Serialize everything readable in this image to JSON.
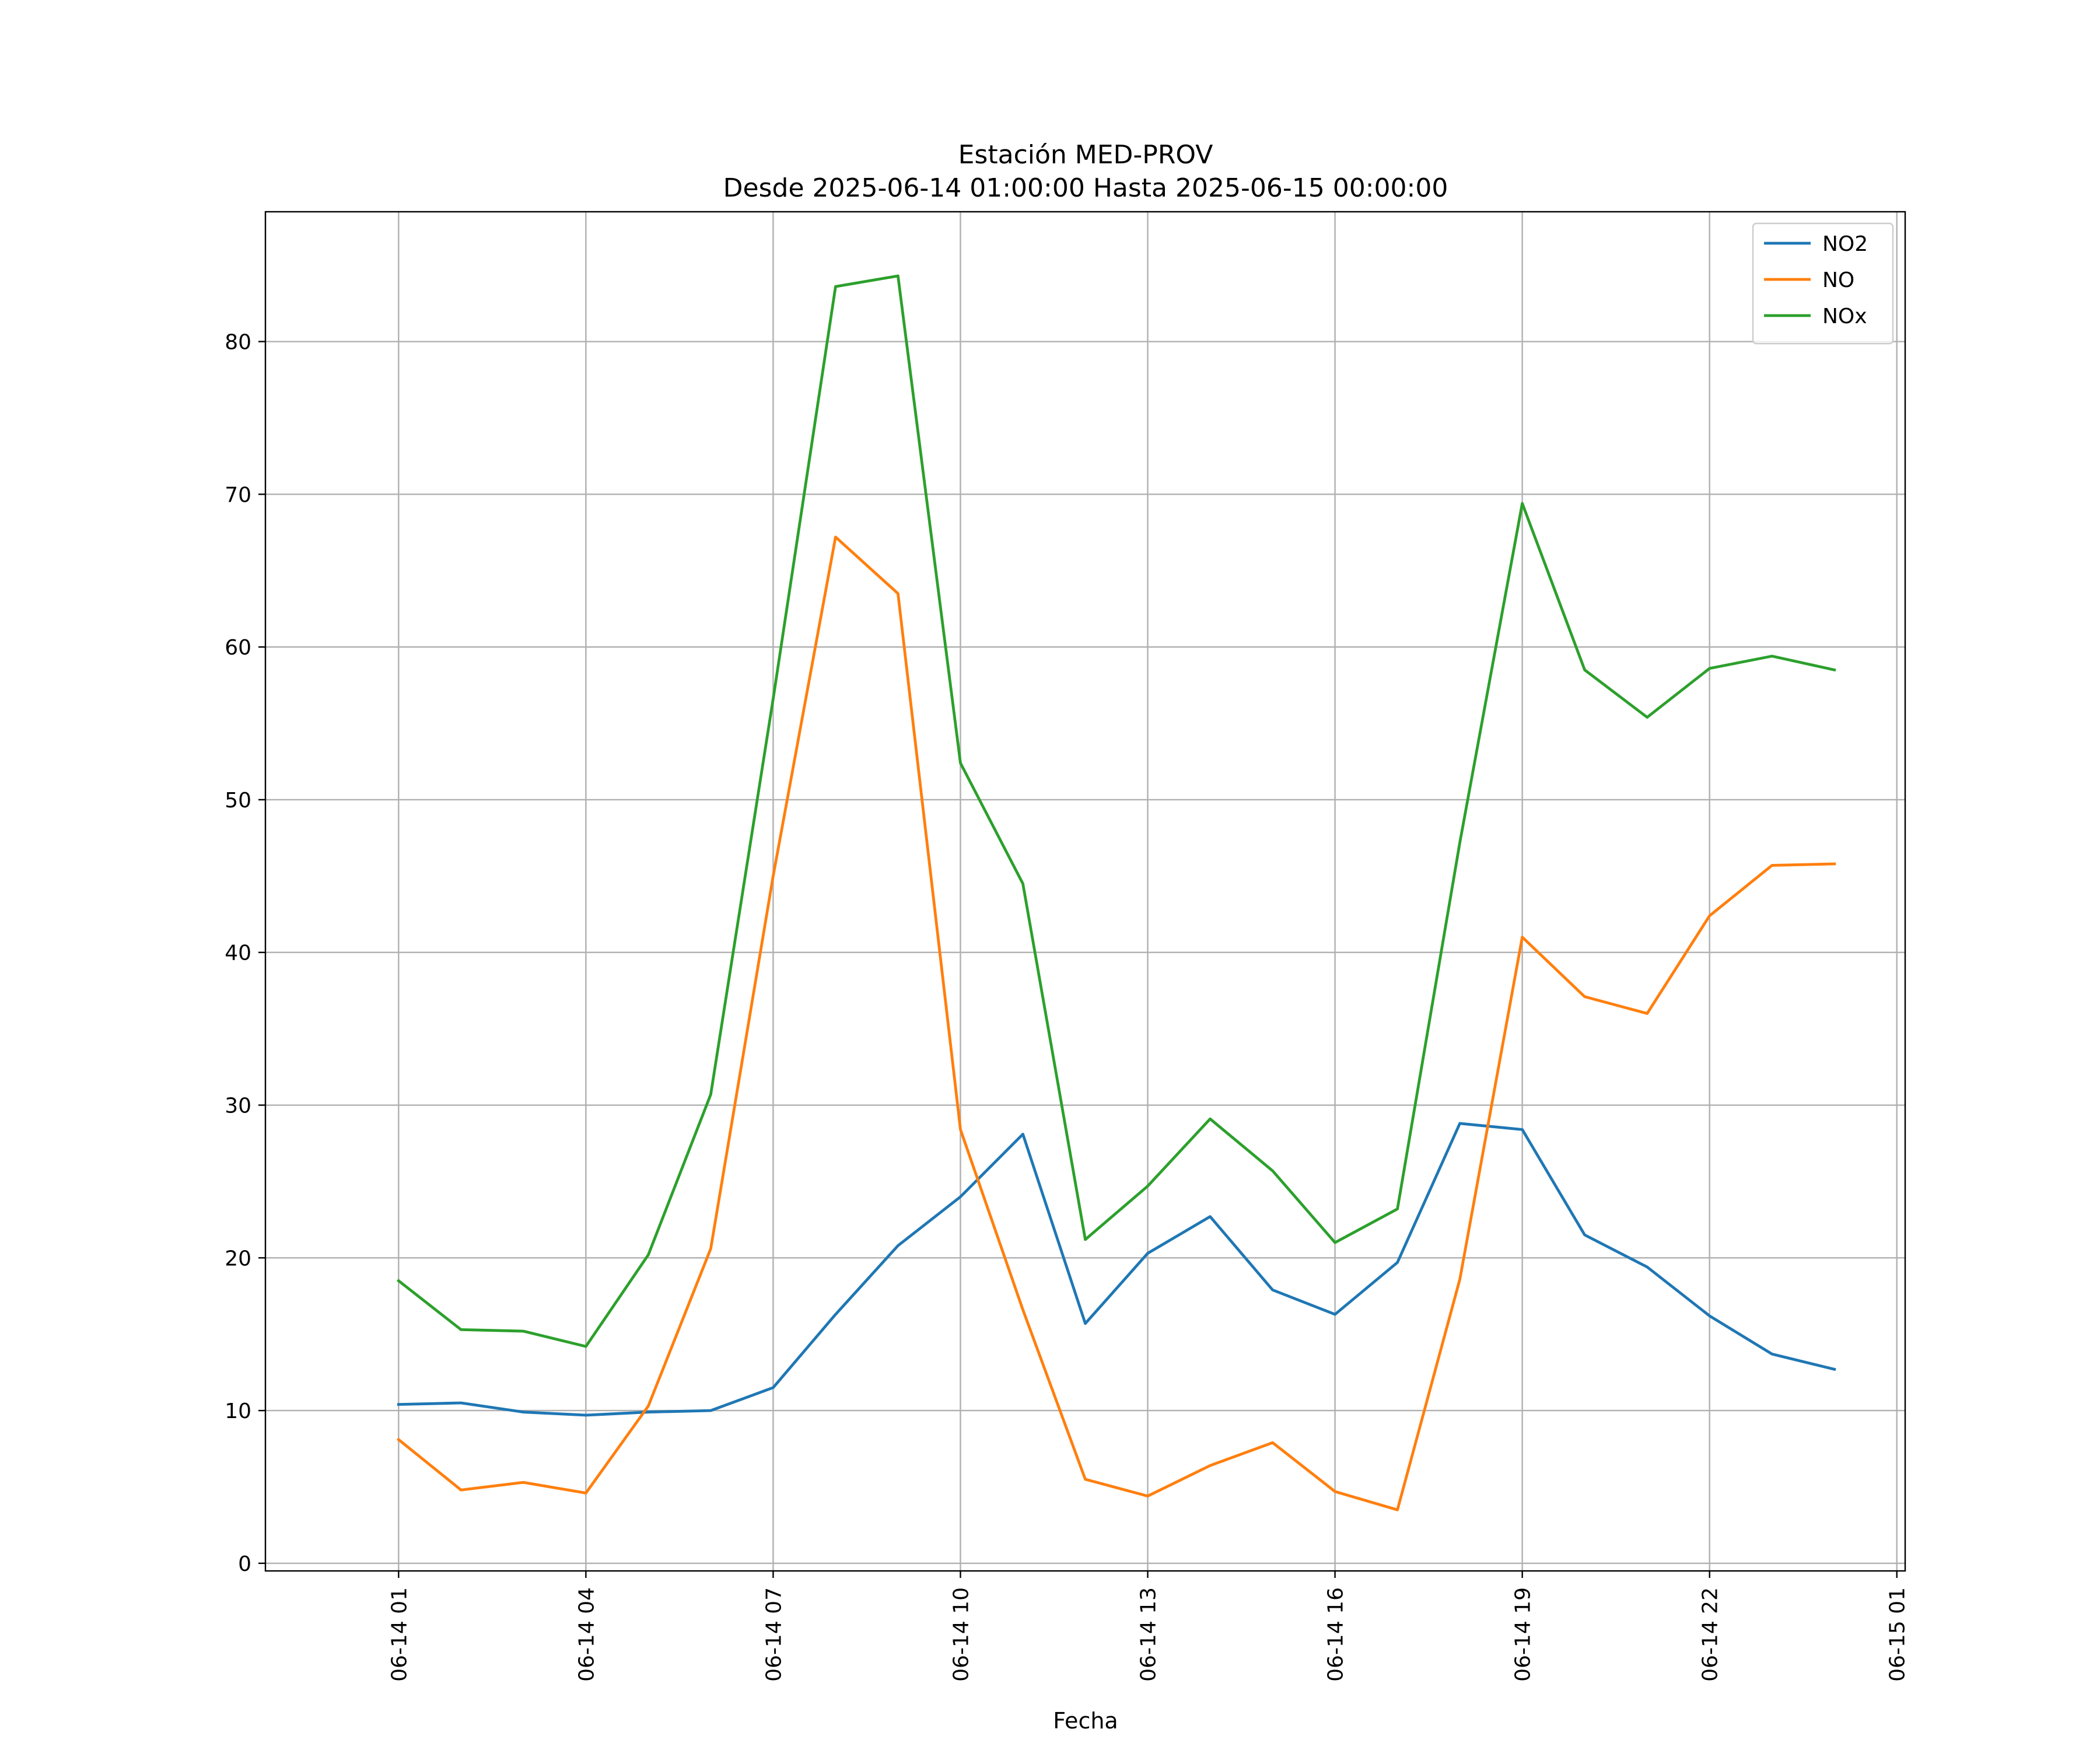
{
  "chart_data": {
    "type": "line",
    "title": "Estación MED-PROV",
    "subtitle": "Desde 2025-06-14 01:00:00 Hasta 2025-06-15 00:00:00",
    "xlabel": "Fecha",
    "ylabel": "",
    "x": [
      "2025-06-14 01:00",
      "2025-06-14 02:00",
      "2025-06-14 03:00",
      "2025-06-14 04:00",
      "2025-06-14 05:00",
      "2025-06-14 06:00",
      "2025-06-14 07:00",
      "2025-06-14 08:00",
      "2025-06-14 09:00",
      "2025-06-14 10:00",
      "2025-06-14 11:00",
      "2025-06-14 12:00",
      "2025-06-14 13:00",
      "2025-06-14 14:00",
      "2025-06-14 15:00",
      "2025-06-14 16:00",
      "2025-06-14 17:00",
      "2025-06-14 18:00",
      "2025-06-14 19:00",
      "2025-06-14 20:00",
      "2025-06-14 21:00",
      "2025-06-14 22:00",
      "2025-06-14 23:00",
      "2025-06-15 00:00"
    ],
    "xlim": [
      "2025-06-13 22:52",
      "2025-06-15 01:08"
    ],
    "x_ticks": [
      "06-14 01",
      "06-14 04",
      "06-14 07",
      "06-14 10",
      "06-14 13",
      "06-14 16",
      "06-14 19",
      "06-14 22",
      "06-15 01"
    ],
    "x_tick_values": [
      "2025-06-14 01:00",
      "2025-06-14 04:00",
      "2025-06-14 07:00",
      "2025-06-14 10:00",
      "2025-06-14 13:00",
      "2025-06-14 16:00",
      "2025-06-14 19:00",
      "2025-06-14 22:00",
      "2025-06-15 01:00"
    ],
    "ylim": [
      -0.5,
      88.5
    ],
    "y_ticks": [
      0,
      10,
      20,
      30,
      40,
      50,
      60,
      70,
      80
    ],
    "grid": true,
    "legend_position": "top-right",
    "series": [
      {
        "name": "NO2",
        "color": "#1f77b4",
        "values": [
          10.4,
          10.5,
          9.9,
          9.7,
          9.9,
          10.0,
          11.5,
          16.3,
          20.8,
          24.0,
          28.1,
          15.7,
          20.3,
          22.7,
          17.9,
          16.3,
          19.7,
          28.8,
          28.4,
          21.5,
          19.4,
          16.2,
          13.7,
          12.7
        ]
      },
      {
        "name": "NO",
        "color": "#ff7f0e",
        "values": [
          8.1,
          4.8,
          5.3,
          4.6,
          10.3,
          20.6,
          45.0,
          67.2,
          63.5,
          28.4,
          16.6,
          5.5,
          4.4,
          6.4,
          7.9,
          4.7,
          3.5,
          18.6,
          41.0,
          37.1,
          36.0,
          42.4,
          45.7,
          45.8
        ]
      },
      {
        "name": "NOx",
        "color": "#2ca02c",
        "values": [
          18.5,
          15.3,
          15.2,
          14.2,
          20.2,
          30.7,
          56.6,
          83.6,
          84.3,
          52.4,
          44.5,
          21.2,
          24.7,
          29.1,
          25.7,
          21.0,
          23.2,
          47.2,
          69.4,
          58.5,
          55.4,
          58.6,
          59.4,
          58.5
        ]
      }
    ]
  }
}
